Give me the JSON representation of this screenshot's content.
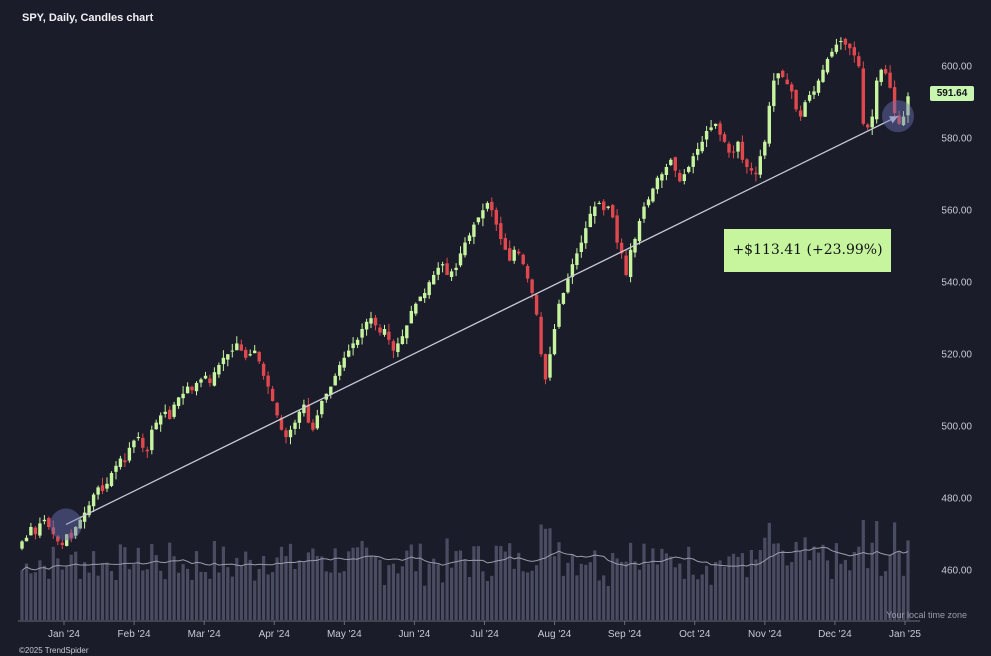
{
  "header": {
    "title": "SPY, Daily, Candles chart",
    "credit": "©2025 TrendSpider",
    "timezone_note": "Your local time zone"
  },
  "badges": {
    "last_price": "591.64",
    "change": "+$113.41 (+23.99%)"
  },
  "colors": {
    "background": "#1b1c29",
    "up": "#c7f59f",
    "down": "#e0484d",
    "trendline": "#c8c9d6",
    "volume": "#4a4c62",
    "volume_ma": "#9a9cab",
    "marker": "#6f74b8"
  },
  "chart_data": {
    "type": "candlestick",
    "title": "SPY, Daily, Candles chart",
    "ylim": [
      452,
      612
    ],
    "y_ticks": [
      "600.00",
      "580.00",
      "560.00",
      "540.00",
      "520.00",
      "500.00",
      "480.00",
      "460.00"
    ],
    "x_ticks": [
      "Jan '24",
      "Feb '24",
      "Mar '24",
      "Apr '24",
      "May '24",
      "Jun '24",
      "Jul '24",
      "Aug '24",
      "Sep '24",
      "Oct '24",
      "Nov '24",
      "Dec '24",
      "Jan '25"
    ],
    "closes": [
      468,
      469,
      472,
      470,
      473,
      474,
      472,
      470,
      468,
      467,
      470,
      469,
      472,
      474,
      476,
      478,
      481,
      483,
      482,
      484,
      487,
      489,
      491,
      490,
      494,
      496,
      497,
      494,
      493,
      499,
      501,
      503,
      504,
      502,
      506,
      508,
      509,
      511,
      510,
      512,
      513,
      514,
      512,
      515,
      517,
      519,
      520,
      521,
      523,
      521,
      519,
      520,
      521,
      518,
      514,
      511,
      507,
      503,
      499,
      497,
      499,
      501,
      504,
      506,
      501,
      499,
      503,
      507,
      509,
      511,
      514,
      517,
      519,
      521,
      523,
      524,
      527,
      529,
      530,
      528,
      526,
      527,
      524,
      521,
      523,
      525,
      528,
      532,
      534,
      536,
      537,
      540,
      542,
      544,
      545,
      542,
      543,
      544,
      548,
      551,
      553,
      556,
      558,
      560,
      562,
      560,
      556,
      552,
      549,
      546,
      549,
      548,
      545,
      541,
      537,
      531,
      520,
      513,
      520,
      527,
      534,
      537,
      541,
      545,
      548,
      551,
      555,
      559,
      561,
      562,
      560,
      561,
      558,
      551,
      548,
      542,
      549,
      552,
      557,
      561,
      563,
      566,
      569,
      570,
      572,
      574,
      571,
      568,
      570,
      572,
      575,
      577,
      579,
      582,
      583,
      584,
      581,
      579,
      576,
      576,
      579,
      574,
      572,
      571,
      570,
      575,
      579,
      589,
      596,
      598,
      597,
      595,
      593,
      588,
      586,
      590,
      592,
      593,
      596,
      599,
      602,
      604,
      606,
      607,
      606,
      605,
      603,
      600,
      584,
      583,
      586,
      596,
      599,
      598,
      594,
      587,
      584,
      586,
      591.64
    ],
    "trend_line": {
      "start": {
        "date": "Jan '24",
        "price": 472.7
      },
      "end": {
        "date": "Jan '25",
        "price": 586.1
      },
      "change": "+$113.41 (+23.99%)"
    },
    "last_price": 591.64
  }
}
